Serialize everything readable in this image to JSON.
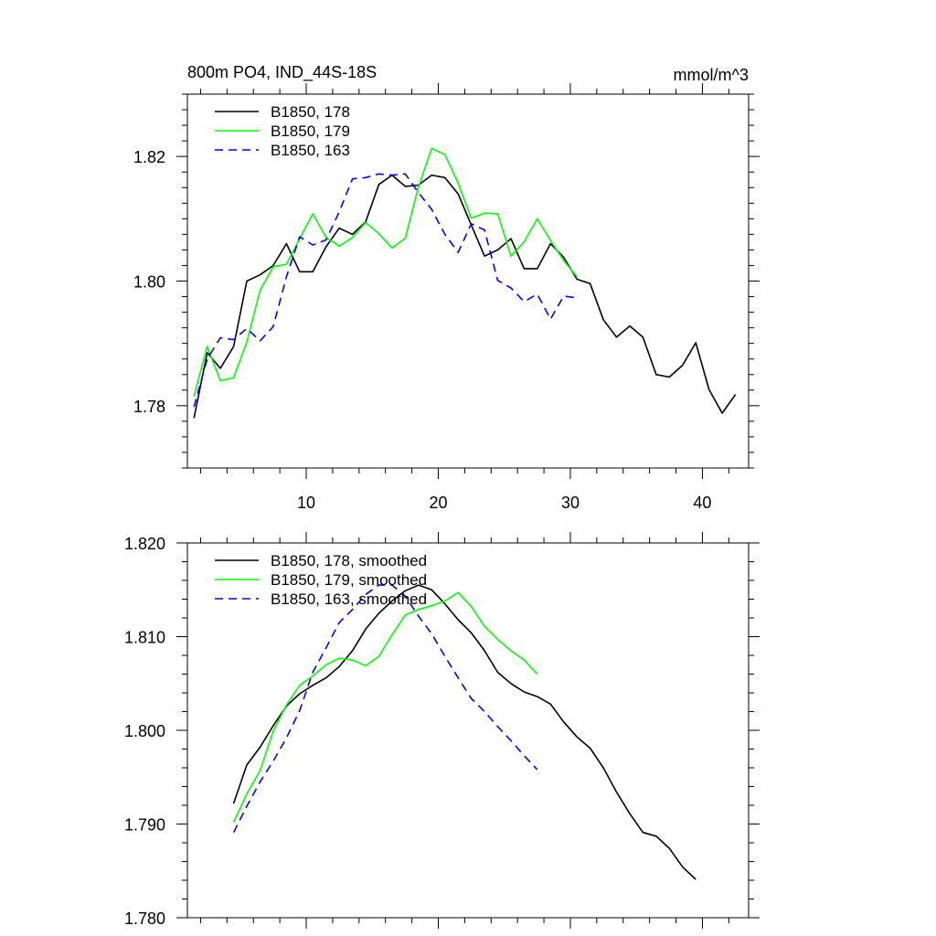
{
  "chart_data": [
    {
      "type": "line",
      "title": "800m PO4, IND_44S-18S",
      "units": "mmol/m^3",
      "xlabel": "",
      "ylabel": "",
      "xlim": [
        1,
        43.5
      ],
      "ylim": [
        1.77,
        1.83
      ],
      "xticks": [
        10,
        20,
        30,
        40
      ],
      "xtick_labels": [
        "10",
        "20",
        "30",
        "40"
      ],
      "yticks": [
        1.78,
        1.8,
        1.82
      ],
      "ytick_labels": [
        "1.78",
        "1.80",
        "1.82"
      ],
      "legend_placement": "top-left",
      "series": [
        {
          "name": "B1850, 178",
          "color": "#000000",
          "dash": "solid",
          "x": [
            1.5,
            2.5,
            3.5,
            4.5,
            5.5,
            6.5,
            7.5,
            8.5,
            9.5,
            10.5,
            11.5,
            12.5,
            13.5,
            14.5,
            15.5,
            16.5,
            17.5,
            18.5,
            19.5,
            20.5,
            21.5,
            22.5,
            23.5,
            24.5,
            25.5,
            26.5,
            27.5,
            28.5,
            29.5,
            30.5,
            31.5,
            32.5,
            33.5,
            34.5,
            35.5,
            36.5,
            37.5,
            38.5,
            39.5,
            40.5,
            41.5,
            42.5
          ],
          "values": [
            1.778,
            1.7885,
            1.786,
            1.7895,
            1.8,
            1.801,
            1.8025,
            1.806,
            1.8015,
            1.8015,
            1.8055,
            1.8085,
            1.8075,
            1.8095,
            1.8155,
            1.817,
            1.8152,
            1.8154,
            1.817,
            1.8166,
            1.814,
            1.809,
            1.804,
            1.805,
            1.8068,
            1.802,
            1.802,
            1.806,
            1.8038,
            1.8003,
            1.7996,
            1.7938,
            1.791,
            1.7928,
            1.791,
            1.785,
            1.7846,
            1.7865,
            1.7901,
            1.7826,
            1.7788,
            1.7818
          ]
        },
        {
          "name": "B1850, 179",
          "color": "#00ff00",
          "dash": "solid",
          "x": [
            1.5,
            2.5,
            3.5,
            4.5,
            5.5,
            6.5,
            7.5,
            8.5,
            9.5,
            10.5,
            11.5,
            12.5,
            13.5,
            14.5,
            15.5,
            16.5,
            17.5,
            18.5,
            19.5,
            20.5,
            21.5,
            22.5,
            23.5,
            24.5,
            25.5,
            26.5,
            27.5,
            28.5,
            29.5,
            30.5
          ],
          "values": [
            1.7815,
            1.7895,
            1.784,
            1.7845,
            1.7902,
            1.7985,
            1.8023,
            1.8027,
            1.8068,
            1.8108,
            1.807,
            1.8056,
            1.807,
            1.8094,
            1.8076,
            1.8053,
            1.8069,
            1.8151,
            1.8213,
            1.8203,
            1.8157,
            1.8101,
            1.8109,
            1.8108,
            1.804,
            1.8063,
            1.81,
            1.8065,
            1.8033,
            1.8007
          ]
        },
        {
          "name": "B1850, 163",
          "color": "#0000ff",
          "dash": "dashed",
          "x": [
            1.5,
            2.5,
            3.5,
            4.5,
            5.5,
            6.5,
            7.5,
            8.5,
            9.5,
            10.5,
            11.5,
            12.5,
            13.5,
            14.5,
            15.5,
            16.5,
            17.5,
            18.5,
            19.5,
            20.5,
            21.5,
            22.5,
            23.5,
            24.5,
            25.5,
            26.5,
            27.5,
            28.5,
            29.5,
            30.5
          ],
          "values": [
            1.7798,
            1.7875,
            1.7909,
            1.7906,
            1.7924,
            1.7904,
            1.7927,
            1.8007,
            1.8071,
            1.8058,
            1.8066,
            1.8111,
            1.8164,
            1.8166,
            1.8172,
            1.817,
            1.8172,
            1.8142,
            1.8115,
            1.8075,
            1.8046,
            1.8092,
            1.8082,
            1.8001,
            1.7989,
            1.7967,
            1.7979,
            1.7939,
            1.7976,
            1.7973
          ]
        }
      ]
    },
    {
      "type": "line",
      "title": "",
      "xlabel": "",
      "ylabel": "",
      "xlim": [
        1,
        43.5
      ],
      "ylim": [
        1.78,
        1.82
      ],
      "xticks": [
        10,
        20,
        30,
        40
      ],
      "yticks": [
        1.78,
        1.79,
        1.8,
        1.81,
        1.82
      ],
      "ytick_labels": [
        "1.780",
        "1.790",
        "1.800",
        "1.810",
        "1.820"
      ],
      "legend_placement": "top-left",
      "series": [
        {
          "name": "B1850, 178, smoothed",
          "color": "#000000",
          "dash": "solid",
          "x": [
            4.5,
            5.5,
            6.5,
            7.5,
            8.5,
            9.5,
            10.5,
            11.5,
            12.5,
            13.5,
            14.5,
            15.5,
            16.5,
            17.5,
            18.5,
            19.5,
            20.5,
            21.5,
            22.5,
            23.5,
            24.5,
            25.5,
            26.5,
            27.5,
            28.5,
            29.5,
            30.5,
            31.5,
            32.5,
            33.5,
            34.5,
            35.5,
            36.5,
            37.5,
            38.5,
            39.5
          ],
          "values": [
            1.7922,
            1.7963,
            1.7982,
            1.8005,
            1.8026,
            1.8039,
            1.8048,
            1.8056,
            1.8068,
            1.8085,
            1.8108,
            1.8125,
            1.8138,
            1.8149,
            1.8155,
            1.815,
            1.8135,
            1.8118,
            1.8104,
            1.8085,
            1.8062,
            1.805,
            1.8041,
            1.8036,
            1.8028,
            1.8009,
            1.7993,
            1.7981,
            1.796,
            1.7934,
            1.7911,
            1.7891,
            1.7887,
            1.7874,
            1.7854,
            1.7841
          ]
        },
        {
          "name": "B1850, 179, smoothed",
          "color": "#00ff00",
          "dash": "solid",
          "x": [
            4.5,
            5.5,
            6.5,
            7.5,
            8.5,
            9.5,
            10.5,
            11.5,
            12.5,
            13.5,
            14.5,
            15.5,
            16.5,
            17.5,
            18.5,
            19.5,
            20.5,
            21.5,
            22.5,
            23.5,
            24.5,
            25.5,
            26.5,
            27.5
          ],
          "values": [
            1.7902,
            1.7932,
            1.7957,
            1.7999,
            1.8027,
            1.8048,
            1.8058,
            1.807,
            1.8077,
            1.8075,
            1.8069,
            1.8079,
            1.8102,
            1.8123,
            1.8129,
            1.8133,
            1.8138,
            1.8147,
            1.8132,
            1.8111,
            1.8097,
            1.8085,
            1.8075,
            1.806
          ]
        },
        {
          "name": "B1850, 163, smoothed",
          "color": "#0000ff",
          "dash": "dashed",
          "x": [
            4.5,
            5.5,
            6.5,
            7.5,
            8.5,
            9.5,
            10.5,
            11.5,
            12.5,
            13.5,
            14.5,
            15.5,
            16.5,
            17.5,
            18.5,
            19.5,
            20.5,
            21.5,
            22.5,
            23.5,
            24.5,
            25.5,
            26.5,
            27.5
          ],
          "values": [
            1.7891,
            1.7919,
            1.7945,
            1.7967,
            1.7992,
            1.8021,
            1.8062,
            1.8088,
            1.8115,
            1.8129,
            1.8145,
            1.8155,
            1.8155,
            1.8143,
            1.8122,
            1.8103,
            1.8079,
            1.8056,
            1.8034,
            1.802,
            1.8004,
            1.7989,
            1.7973,
            1.7958
          ]
        }
      ]
    }
  ]
}
